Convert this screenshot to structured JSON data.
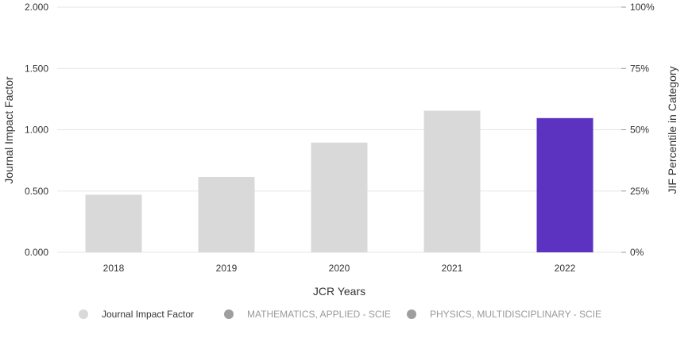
{
  "chart_data": {
    "type": "bar",
    "categories": [
      "2018",
      "2019",
      "2020",
      "2021",
      "2022"
    ],
    "values": [
      0.47,
      0.615,
      0.895,
      1.155,
      1.095
    ],
    "highlight_index": 4,
    "xlabel": "JCR Years",
    "ylabel": "Journal Impact Factor",
    "y2label": "JIF Percentile in Category",
    "ylim": [
      0,
      2
    ],
    "y2lim": [
      0,
      100
    ],
    "yticks": [
      "0.000",
      "0.500",
      "1.000",
      "1.500",
      "2.000"
    ],
    "y2ticks": [
      "0%",
      "25%",
      "50%",
      "75%",
      "100%"
    ],
    "grid": true,
    "legend_position": "bottom",
    "legend": [
      {
        "label": "Journal Impact Factor",
        "color": "#d9d9d9",
        "active": true
      },
      {
        "label": "MATHEMATICS, APPLIED - SCIE",
        "color": "#9e9e9e",
        "active": false
      },
      {
        "label": "PHYSICS, MULTIDISCIPLINARY - SCIE",
        "color": "#9e9e9e",
        "active": false
      }
    ],
    "colors": {
      "bar": "#d9d9d9",
      "bar_highlight": "#5c33c0",
      "grid": "#e6e6e6",
      "legend_active_text": "#333333",
      "legend_inactive_text": "#999999"
    }
  }
}
